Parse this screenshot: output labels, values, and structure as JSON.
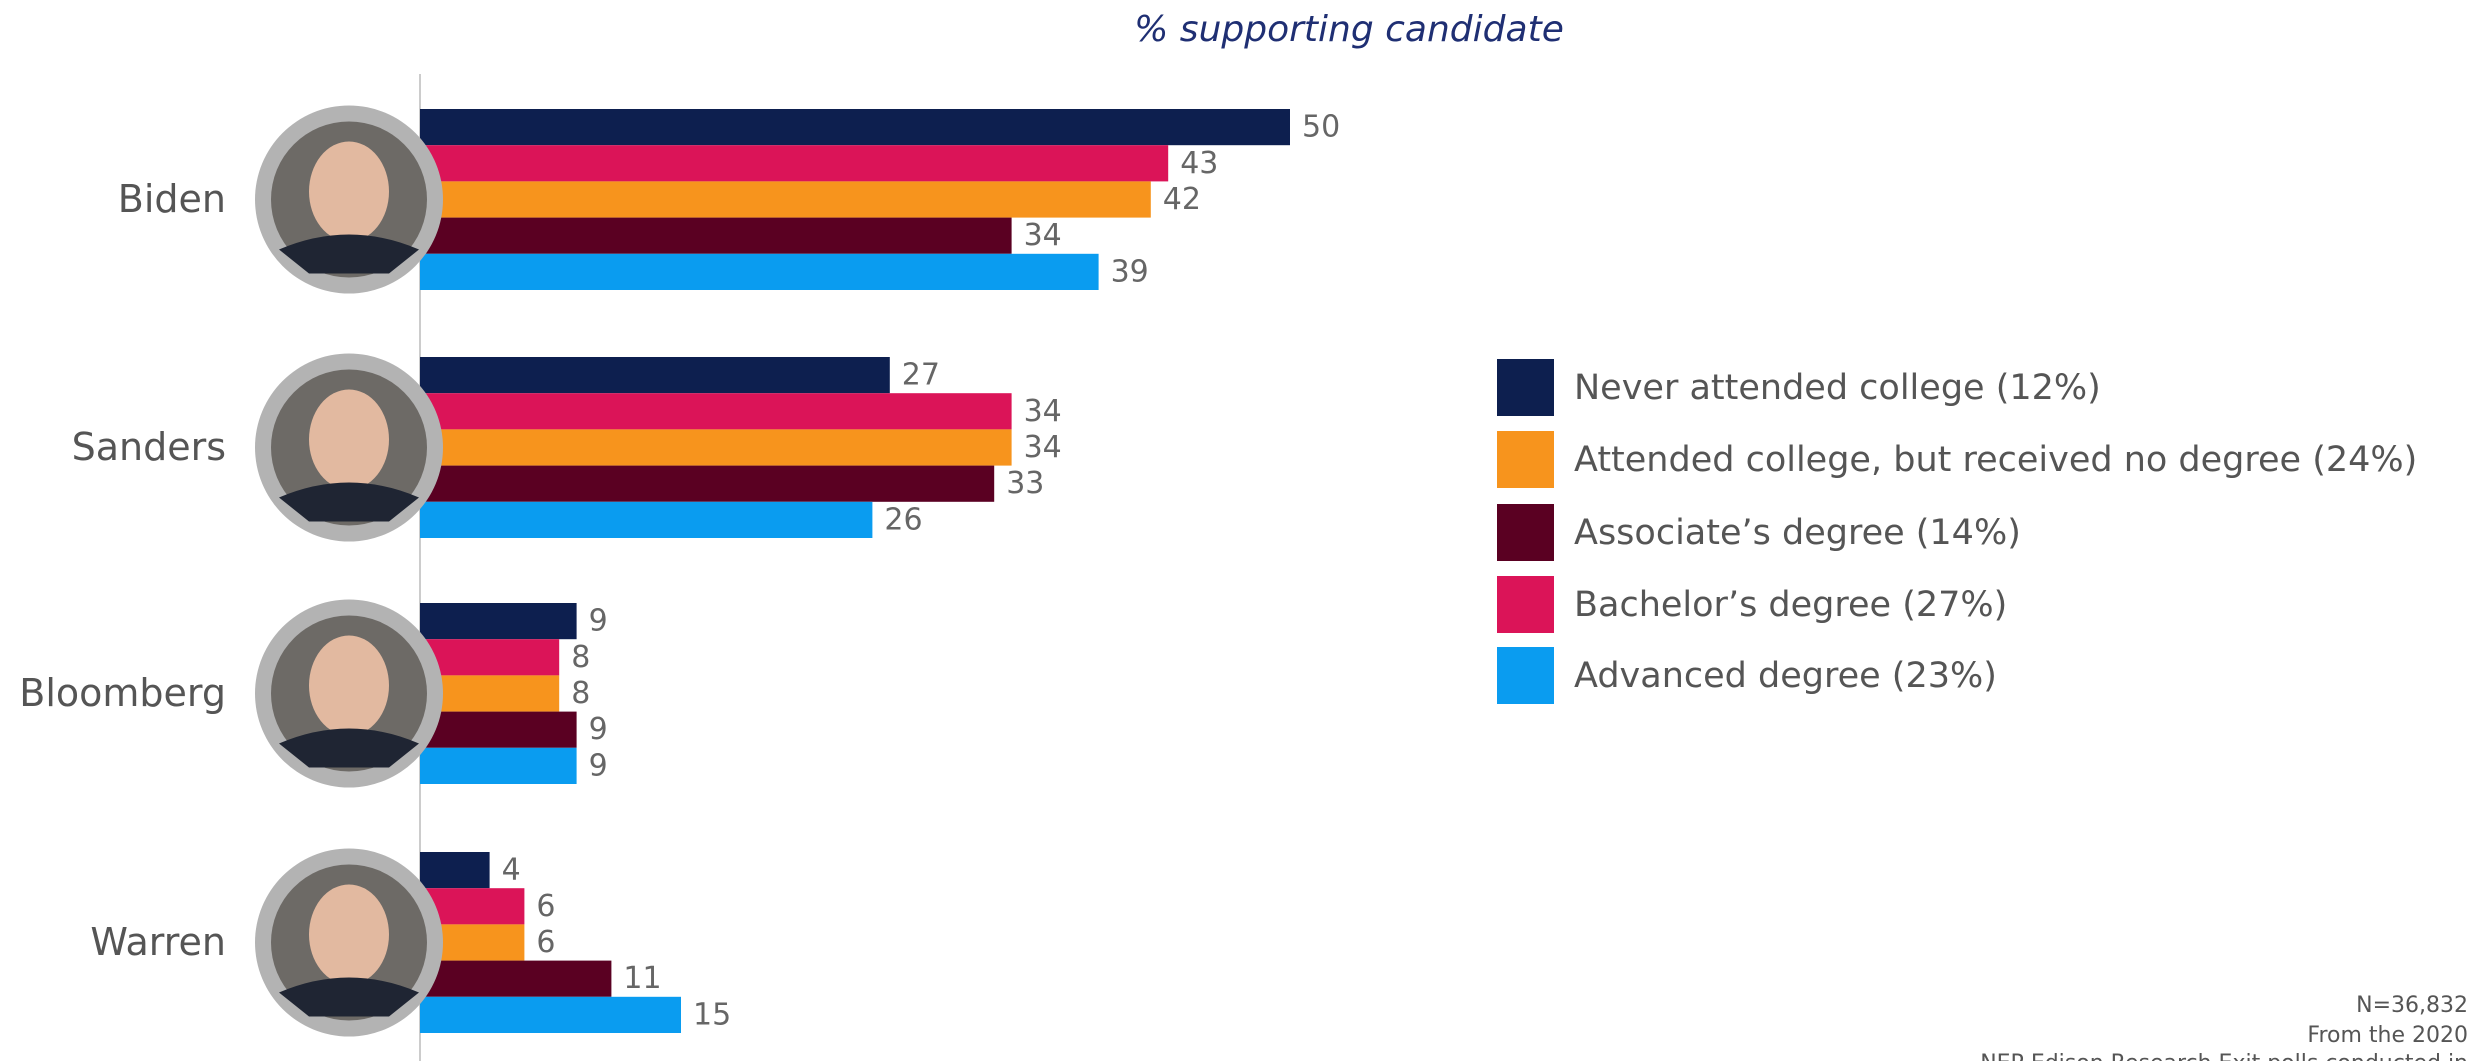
{
  "chart_data": {
    "type": "hbar",
    "title": "% supporting candidate",
    "categories": [
      "Biden",
      "Sanders",
      "Bloomberg",
      "Warren"
    ],
    "series": [
      {
        "name": "Never attended college (12%)",
        "color": "#0d1f4f",
        "values": [
          50,
          27,
          9,
          4
        ]
      },
      {
        "name": "Attended college, but received no degree (24%)",
        "color": "#f7941d",
        "values": [
          42,
          34,
          8,
          6
        ]
      },
      {
        "name": "Associate’s degree (14%)",
        "color": "#5a0022",
        "values": [
          34,
          33,
          9,
          11
        ]
      },
      {
        "name": "Bachelor’s degree (27%)",
        "color": "#db1458",
        "values": [
          43,
          34,
          8,
          6
        ]
      },
      {
        "name": "Advanced degree (23%)",
        "color": "#0a9cf0",
        "values": [
          39,
          26,
          9,
          15
        ]
      }
    ],
    "notes": [
      "N=36,832",
      "From the 2020",
      "NEP Edison Research Exit polls conducted in"
    ]
  }
}
